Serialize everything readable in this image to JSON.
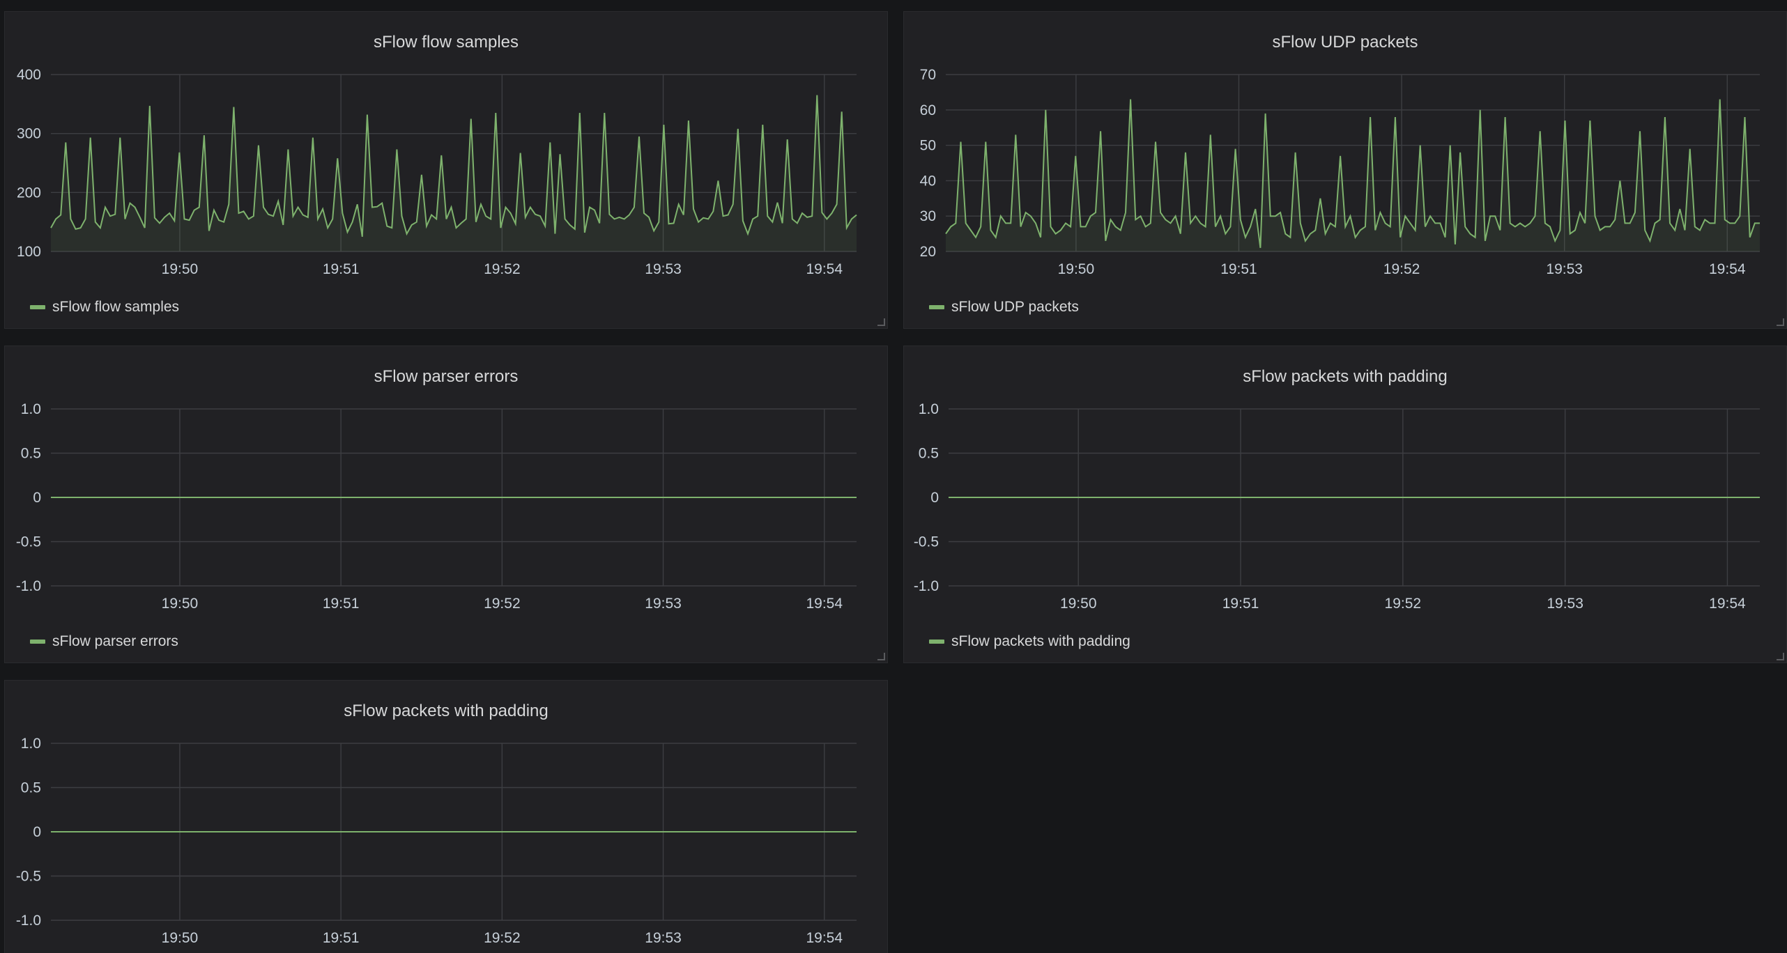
{
  "chart_data": [
    {
      "type": "area",
      "title": "sFlow flow samples",
      "color": "#7eb26d",
      "legend": "bottom-left",
      "ylim": [
        100,
        400
      ],
      "yticks": [
        "100",
        "200",
        "300",
        "400"
      ],
      "yticks_values": [
        100,
        200,
        300,
        400
      ],
      "xlim": [
        "19:49:12",
        "19:54:12"
      ],
      "xticks": [
        "19:50",
        "19:51",
        "19:52",
        "19:53",
        "19:54"
      ],
      "series": [
        {
          "name": "sFlow flow samples",
          "values": [
            140,
            155,
            162,
            285,
            155,
            138,
            140,
            155,
            293,
            150,
            140,
            175,
            160,
            163,
            293,
            155,
            182,
            175,
            158,
            140,
            347,
            157,
            148,
            158,
            165,
            152,
            268,
            155,
            153,
            170,
            175,
            297,
            135,
            170,
            153,
            150,
            180,
            345,
            165,
            168,
            155,
            160,
            280,
            175,
            163,
            160,
            185,
            145,
            273,
            160,
            175,
            162,
            158,
            293,
            155,
            172,
            140,
            155,
            258,
            165,
            133,
            150,
            180,
            125,
            332,
            175,
            176,
            182,
            143,
            140,
            273,
            160,
            130,
            145,
            150,
            230,
            143,
            162,
            155,
            263,
            155,
            175,
            140,
            148,
            155,
            325,
            150,
            180,
            160,
            155,
            335,
            140,
            175,
            165,
            147,
            267,
            158,
            175,
            163,
            160,
            143,
            285,
            130,
            265,
            155,
            145,
            138,
            335,
            132,
            175,
            170,
            148,
            335,
            163,
            155,
            158,
            155,
            162,
            175,
            295,
            165,
            158,
            135,
            150,
            315,
            147,
            148,
            180,
            162,
            322,
            172,
            150,
            157,
            155,
            168,
            220,
            160,
            162,
            180,
            308,
            152,
            130,
            155,
            160,
            315,
            160,
            150,
            183,
            148,
            290,
            155,
            148,
            165,
            158,
            160,
            365,
            166,
            155,
            165,
            180,
            337,
            140,
            155,
            162
          ]
        }
      ]
    },
    {
      "type": "area",
      "title": "sFlow UDP packets",
      "color": "#7eb26d",
      "legend": "bottom-left",
      "ylim": [
        20,
        70
      ],
      "yticks": [
        "20",
        "30",
        "40",
        "50",
        "60",
        "70"
      ],
      "yticks_values": [
        20,
        30,
        40,
        50,
        60,
        70
      ],
      "xlim": [
        "19:49:12",
        "19:54:12"
      ],
      "xticks": [
        "19:50",
        "19:51",
        "19:52",
        "19:53",
        "19:54"
      ],
      "series": [
        {
          "name": "sFlow UDP packets",
          "values": [
            25,
            27,
            28,
            51,
            28,
            26,
            24,
            27,
            51,
            26,
            24,
            30,
            28,
            28,
            53,
            27,
            31,
            30,
            28,
            24,
            60,
            27,
            25,
            26,
            28,
            27,
            47,
            27,
            27,
            30,
            31,
            54,
            23,
            29,
            27,
            26,
            31,
            63,
            29,
            30,
            27,
            28,
            51,
            31,
            29,
            28,
            30,
            25,
            48,
            28,
            30,
            28,
            27,
            53,
            27,
            30,
            25,
            27,
            49,
            29,
            24,
            27,
            32,
            21,
            59,
            30,
            30,
            31,
            25,
            24,
            48,
            28,
            23,
            25,
            26,
            35,
            25,
            28,
            27,
            47,
            27,
            30,
            24,
            26,
            27,
            58,
            26,
            31,
            28,
            27,
            58,
            24,
            30,
            28,
            26,
            50,
            27,
            30,
            28,
            28,
            24,
            50,
            22,
            48,
            27,
            25,
            24,
            60,
            23,
            30,
            30,
            26,
            58,
            28,
            27,
            28,
            27,
            28,
            30,
            54,
            28,
            27,
            23,
            26,
            57,
            25,
            26,
            31,
            28,
            57,
            30,
            26,
            27,
            27,
            29,
            40,
            28,
            28,
            31,
            54,
            26,
            23,
            28,
            29,
            58,
            28,
            26,
            32,
            26,
            49,
            27,
            26,
            29,
            28,
            28,
            63,
            29,
            28,
            28,
            30,
            58,
            24,
            28,
            28
          ]
        }
      ]
    },
    {
      "type": "area",
      "title": "sFlow parser errors",
      "color": "#7eb26d",
      "legend": "bottom-left",
      "ylim": [
        -1.0,
        1.0
      ],
      "yticks": [
        "1.0",
        "0.5",
        "0",
        "-0.5",
        "-1.0"
      ],
      "yticks_values": [
        1.0,
        0.5,
        0,
        -0.5,
        -1.0
      ],
      "xlim": [
        "19:49:12",
        "19:54:12"
      ],
      "xticks": [
        "19:50",
        "19:51",
        "19:52",
        "19:53",
        "19:54"
      ],
      "series": [
        {
          "name": "sFlow parser errors",
          "values": [
            0,
            0
          ]
        }
      ]
    },
    {
      "type": "area",
      "title": "sFlow packets with padding",
      "color": "#7eb26d",
      "legend": "bottom-left",
      "ylim": [
        -1.0,
        1.0
      ],
      "yticks": [
        "1.0",
        "0.5",
        "0",
        "-0.5",
        "-1.0"
      ],
      "yticks_values": [
        1.0,
        0.5,
        0,
        -0.5,
        -1.0
      ],
      "xlim": [
        "19:49:12",
        "19:54:12"
      ],
      "xticks": [
        "19:50",
        "19:51",
        "19:52",
        "19:53",
        "19:54"
      ],
      "series": [
        {
          "name": "sFlow packets with padding",
          "values": [
            0,
            0
          ]
        }
      ]
    },
    {
      "type": "area",
      "title": "sFlow packets with padding",
      "color": "#7eb26d",
      "legend": "none",
      "ylim": [
        -1.0,
        1.0
      ],
      "yticks": [
        "1.0",
        "0.5",
        "0",
        "-0.5",
        "-1.0"
      ],
      "yticks_values": [
        1.0,
        0.5,
        0,
        -0.5,
        -1.0
      ],
      "xlim": [
        "19:49:12",
        "19:54:12"
      ],
      "xticks": [
        "19:50",
        "19:51",
        "19:52",
        "19:53",
        "19:54"
      ],
      "series": [
        {
          "name": "",
          "values": [
            0,
            0
          ]
        }
      ]
    }
  ]
}
